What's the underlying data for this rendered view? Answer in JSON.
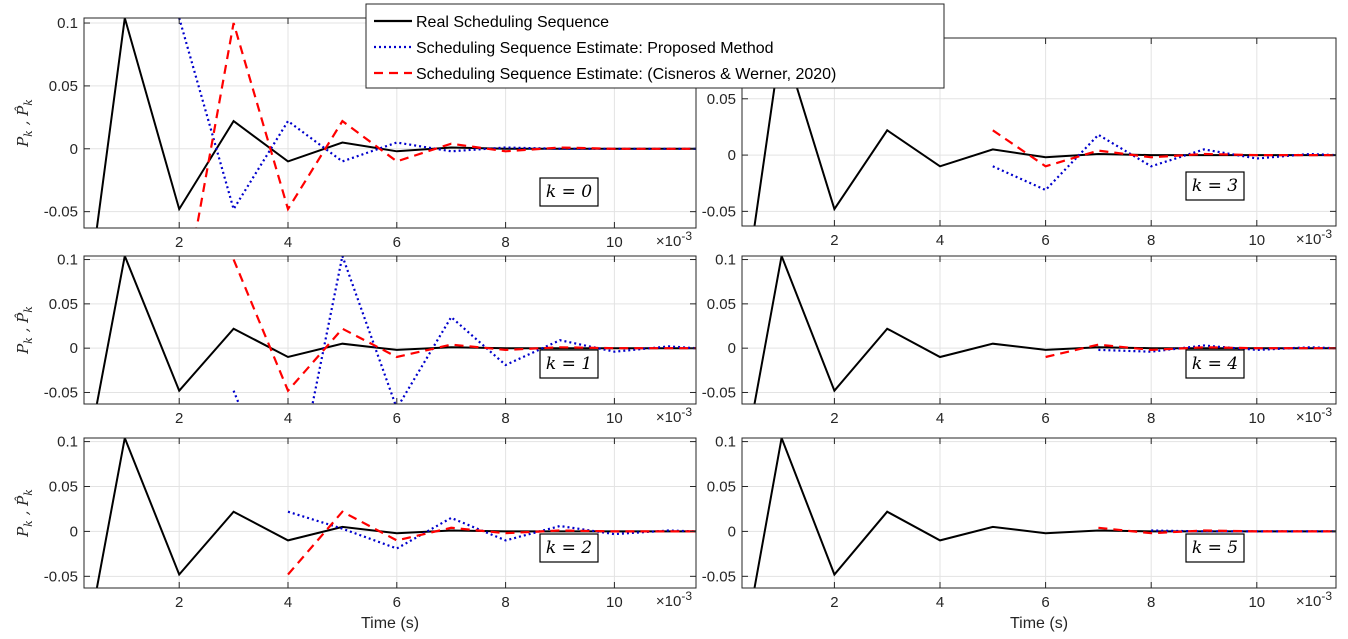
{
  "chart_data": [
    {
      "type": "line",
      "panel_label": "k = 0",
      "ylabel": "P_k , P̂_k",
      "xlabel": "",
      "x_exponent": "×10-3",
      "xlim": [
        0.25,
        11.5
      ],
      "ylim": [
        -0.063,
        0.104
      ],
      "xticks": [
        2,
        4,
        6,
        8,
        10
      ],
      "xtick_labels": [
        "2",
        "4",
        "6",
        "8",
        "10"
      ],
      "yticks": [
        -0.05,
        0,
        0.05,
        0.1
      ],
      "ytick_labels": [
        "-0.05",
        "0",
        "0.05",
        "0.1"
      ],
      "grid": true,
      "series": [
        {
          "name": "Real Scheduling Sequence",
          "color": "#000000",
          "style": "solid",
          "x": [
            0.25,
            1,
            2,
            3,
            4,
            5,
            6,
            7,
            8,
            9,
            10,
            11,
            11.5
          ],
          "y": [
            -0.14,
            0.104,
            -0.048,
            0.022,
            -0.01,
            0.005,
            -0.002,
            0.001,
            0,
            0,
            0,
            0,
            0
          ]
        },
        {
          "name": "Scheduling Sequence Estimate: Proposed Method",
          "color": "#0000cc",
          "style": "dotted",
          "x": [
            2,
            3,
            4,
            5,
            6,
            7,
            8,
            9,
            10,
            11,
            11.5
          ],
          "y": [
            0.104,
            -0.048,
            0.022,
            -0.01,
            0.005,
            -0.002,
            0.001,
            0,
            0,
            0,
            0
          ]
        },
        {
          "name": "Scheduling Sequence Estimate: (Cisneros & Werner, 2020)",
          "color": "#ff0000",
          "style": "dashed",
          "x": [
            2,
            3,
            4,
            5,
            6,
            7,
            8,
            9,
            10,
            11,
            11.5
          ],
          "y": [
            -0.14,
            0.1,
            -0.048,
            0.022,
            -0.01,
            0.004,
            -0.002,
            0.001,
            0,
            0,
            0
          ]
        }
      ]
    },
    {
      "type": "line",
      "panel_label": "k = 1",
      "ylabel": "P_k , P̂_k",
      "xlabel": "",
      "x_exponent": "×10-3",
      "xlim": [
        0.25,
        11.5
      ],
      "ylim": [
        -0.063,
        0.104
      ],
      "xticks": [
        2,
        4,
        6,
        8,
        10
      ],
      "xtick_labels": [
        "2",
        "4",
        "6",
        "8",
        "10"
      ],
      "yticks": [
        -0.05,
        0,
        0.05,
        0.1
      ],
      "ytick_labels": [
        "-0.05",
        "0",
        "0.05",
        "0.1"
      ],
      "grid": true,
      "series": [
        {
          "name": "Real Scheduling Sequence",
          "color": "#000000",
          "style": "solid",
          "x": [
            0.25,
            1,
            2,
            3,
            4,
            5,
            6,
            7,
            8,
            9,
            10,
            11,
            11.5
          ],
          "y": [
            -0.14,
            0.104,
            -0.048,
            0.022,
            -0.01,
            0.005,
            -0.002,
            0.001,
            0,
            0,
            0,
            0,
            0
          ]
        },
        {
          "name": "Scheduling Sequence Estimate: Proposed Method",
          "color": "#0000cc",
          "style": "dotted",
          "x": [
            3,
            4,
            5,
            6,
            7,
            8,
            9,
            10,
            11,
            11.5
          ],
          "y": [
            -0.048,
            -0.2,
            0.104,
            -0.068,
            0.035,
            -0.019,
            0.009,
            -0.004,
            0.002,
            0
          ]
        },
        {
          "name": "Scheduling Sequence Estimate: (Cisneros & Werner, 2020)",
          "color": "#ff0000",
          "style": "dashed",
          "x": [
            3,
            4,
            5,
            6,
            7,
            8,
            9,
            10,
            11,
            11.5
          ],
          "y": [
            0.1,
            -0.048,
            0.022,
            -0.01,
            0.004,
            -0.002,
            0.001,
            0,
            0,
            0
          ]
        }
      ]
    },
    {
      "type": "line",
      "panel_label": "k = 2",
      "ylabel": "P_k , P̂_k",
      "xlabel": "Time (s)",
      "x_exponent": "×10-3",
      "xlim": [
        0.25,
        11.5
      ],
      "ylim": [
        -0.063,
        0.104
      ],
      "xticks": [
        2,
        4,
        6,
        8,
        10
      ],
      "xtick_labels": [
        "2",
        "4",
        "6",
        "8",
        "10"
      ],
      "yticks": [
        -0.05,
        0,
        0.05,
        0.1
      ],
      "ytick_labels": [
        "-0.05",
        "0",
        "0.05",
        "0.1"
      ],
      "grid": true,
      "series": [
        {
          "name": "Real Scheduling Sequence",
          "color": "#000000",
          "style": "solid",
          "x": [
            0.25,
            1,
            2,
            3,
            4,
            5,
            6,
            7,
            8,
            9,
            10,
            11,
            11.5
          ],
          "y": [
            -0.14,
            0.104,
            -0.048,
            0.022,
            -0.01,
            0.005,
            -0.002,
            0.001,
            0,
            0,
            0,
            0,
            0
          ]
        },
        {
          "name": "Scheduling Sequence Estimate: Proposed Method",
          "color": "#0000cc",
          "style": "dotted",
          "x": [
            4,
            5,
            6,
            7,
            8,
            9,
            10,
            11,
            11.5
          ],
          "y": [
            0.022,
            0.003,
            -0.019,
            0.015,
            -0.01,
            0.006,
            -0.003,
            0.001,
            0
          ]
        },
        {
          "name": "Scheduling Sequence Estimate: (Cisneros & Werner, 2020)",
          "color": "#ff0000",
          "style": "dashed",
          "x": [
            4,
            5,
            6,
            7,
            8,
            9,
            10,
            11,
            11.5
          ],
          "y": [
            -0.048,
            0.022,
            -0.01,
            0.004,
            -0.002,
            0.001,
            0,
            0,
            0
          ]
        }
      ]
    },
    {
      "type": "line",
      "panel_label": "k = 3",
      "ylabel": "",
      "xlabel": "",
      "x_exponent": "×10-3",
      "xlim": [
        0.25,
        11.5
      ],
      "ylim": [
        -0.063,
        0.104
      ],
      "xticks": [
        2,
        4,
        6,
        8,
        10
      ],
      "xtick_labels": [
        "2",
        "4",
        "6",
        "8",
        "10"
      ],
      "yticks": [
        -0.05,
        0,
        0.05
      ],
      "ytick_labels": [
        "-0.05",
        "0",
        "0.05"
      ],
      "grid": true,
      "series": [
        {
          "name": "Real Scheduling Sequence",
          "color": "#000000",
          "style": "solid",
          "x": [
            0.25,
            1,
            2,
            3,
            4,
            5,
            6,
            7,
            8,
            9,
            10,
            11,
            11.5
          ],
          "y": [
            -0.14,
            0.104,
            -0.048,
            0.022,
            -0.01,
            0.005,
            -0.002,
            0.001,
            0,
            0,
            0,
            0,
            0
          ]
        },
        {
          "name": "Scheduling Sequence Estimate: Proposed Method",
          "color": "#0000cc",
          "style": "dotted",
          "x": [
            5,
            6,
            7,
            8,
            9,
            10,
            11,
            11.5
          ],
          "y": [
            -0.01,
            -0.031,
            0.018,
            -0.01,
            0.005,
            -0.003,
            0.001,
            0
          ]
        },
        {
          "name": "Scheduling Sequence Estimate: (Cisneros & Werner, 2020)",
          "color": "#ff0000",
          "style": "dashed",
          "x": [
            5,
            6,
            7,
            8,
            9,
            10,
            11,
            11.5
          ],
          "y": [
            0.022,
            -0.01,
            0.004,
            -0.002,
            0.001,
            0,
            0,
            0
          ]
        }
      ]
    },
    {
      "type": "line",
      "panel_label": "k = 4",
      "ylabel": "",
      "xlabel": "",
      "x_exponent": "×10-3",
      "xlim": [
        0.25,
        11.5
      ],
      "ylim": [
        -0.063,
        0.104
      ],
      "xticks": [
        2,
        4,
        6,
        8,
        10
      ],
      "xtick_labels": [
        "2",
        "4",
        "6",
        "8",
        "10"
      ],
      "yticks": [
        -0.05,
        0,
        0.05,
        0.1
      ],
      "ytick_labels": [
        "-0.05",
        "0",
        "0.05",
        "0.1"
      ],
      "grid": true,
      "series": [
        {
          "name": "Real Scheduling Sequence",
          "color": "#000000",
          "style": "solid",
          "x": [
            0.25,
            1,
            2,
            3,
            4,
            5,
            6,
            7,
            8,
            9,
            10,
            11,
            11.5
          ],
          "y": [
            -0.14,
            0.104,
            -0.048,
            0.022,
            -0.01,
            0.005,
            -0.002,
            0.001,
            0,
            0,
            0,
            0,
            0
          ]
        },
        {
          "name": "Scheduling Sequence Estimate: Proposed Method",
          "color": "#0000cc",
          "style": "dotted",
          "x": [
            7,
            8,
            9,
            10,
            11,
            11.5
          ],
          "y": [
            -0.002,
            -0.004,
            0.003,
            -0.002,
            0.001,
            0
          ]
        },
        {
          "name": "Scheduling Sequence Estimate: (Cisneros & Werner, 2020)",
          "color": "#ff0000",
          "style": "dashed",
          "x": [
            6,
            7,
            8,
            9,
            10,
            11,
            11.5
          ],
          "y": [
            -0.01,
            0.004,
            -0.002,
            0.001,
            0,
            0,
            0
          ]
        }
      ]
    },
    {
      "type": "line",
      "panel_label": "k = 5",
      "ylabel": "",
      "xlabel": "Time (s)",
      "x_exponent": "×10-3",
      "xlim": [
        0.25,
        11.5
      ],
      "ylim": [
        -0.063,
        0.104
      ],
      "xticks": [
        2,
        4,
        6,
        8,
        10
      ],
      "xtick_labels": [
        "2",
        "4",
        "6",
        "8",
        "10"
      ],
      "yticks": [
        -0.05,
        0,
        0.05,
        0.1
      ],
      "ytick_labels": [
        "-0.05",
        "0",
        "0.05",
        "0.1"
      ],
      "grid": true,
      "series": [
        {
          "name": "Real Scheduling Sequence",
          "color": "#000000",
          "style": "solid",
          "x": [
            0.25,
            1,
            2,
            3,
            4,
            5,
            6,
            7,
            8,
            9,
            10,
            11,
            11.5
          ],
          "y": [
            -0.14,
            0.104,
            -0.048,
            0.022,
            -0.01,
            0.005,
            -0.002,
            0.001,
            0,
            0,
            0,
            0,
            0
          ]
        },
        {
          "name": "Scheduling Sequence Estimate: Proposed Method",
          "color": "#0000cc",
          "style": "dotted",
          "x": [
            8,
            9,
            10,
            11,
            11.5
          ],
          "y": [
            0.001,
            0,
            0,
            0,
            0
          ]
        },
        {
          "name": "Scheduling Sequence Estimate: (Cisneros & Werner, 2020)",
          "color": "#ff0000",
          "style": "dashed",
          "x": [
            7,
            8,
            9,
            10,
            11,
            11.5
          ],
          "y": [
            0.004,
            -0.002,
            0.001,
            0,
            0,
            0
          ]
        }
      ]
    }
  ],
  "legend": {
    "placement": "top-center",
    "entries": [
      {
        "label": "Real Scheduling Sequence",
        "color": "#000000",
        "style": "solid"
      },
      {
        "label": "Scheduling Sequence Estimate: Proposed Method",
        "color": "#0000cc",
        "style": "dotted"
      },
      {
        "label": "Scheduling Sequence Estimate: (Cisneros & Werner, 2020)",
        "color": "#ff0000",
        "style": "dashed"
      }
    ]
  }
}
